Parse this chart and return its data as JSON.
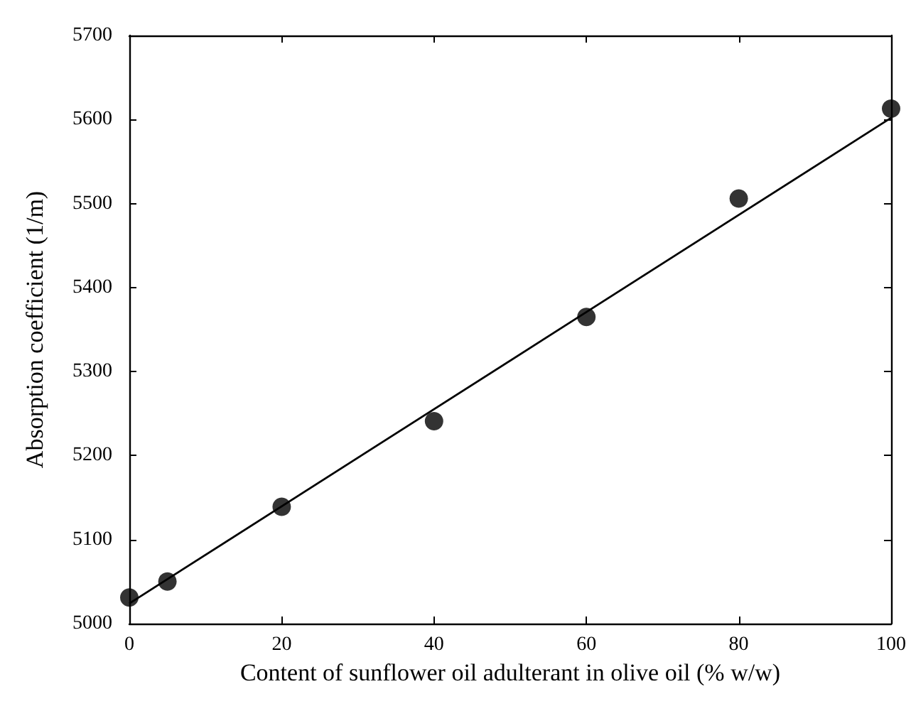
{
  "chart_data": {
    "type": "scatter",
    "xlabel": "Content of sunflower oil adulterant in olive oil (% w/w)",
    "ylabel": "Absorption coefficient (1/m)",
    "xlim": [
      0,
      100
    ],
    "xticks": [
      0,
      20,
      40,
      60,
      80,
      100
    ],
    "ylim": [
      5000,
      5700
    ],
    "yticks": [
      5000,
      5100,
      5200,
      5300,
      5400,
      5500,
      5600,
      5700
    ],
    "grid": false,
    "marker": "circle",
    "series": [
      {
        "color": "#000000",
        "x": [
          0,
          5,
          20,
          40,
          60,
          80,
          100
        ],
        "values": [
          5031,
          5050,
          5139,
          5241,
          5365,
          5506,
          5613
        ]
      },
      {
        "type": "line",
        "color": "#000000",
        "line_style": "solid",
        "marker": "none",
        "x": [
          0,
          100
        ],
        "values": [
          5024,
          5602
        ]
      }
    ]
  }
}
